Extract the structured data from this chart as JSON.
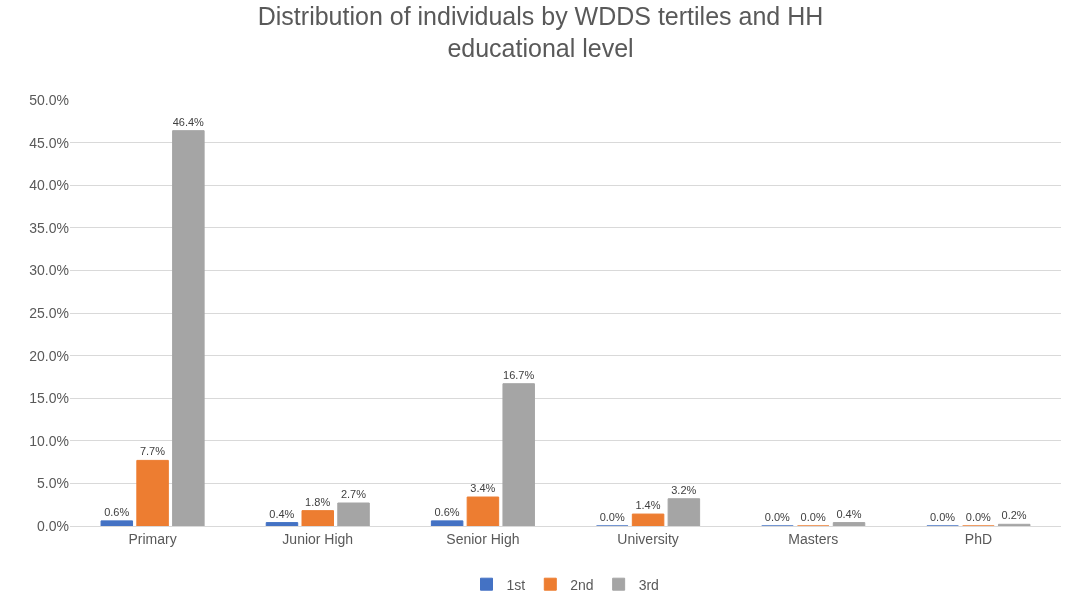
{
  "chart_data": {
    "type": "bar",
    "title": "Distribution of individuals by WDDS tertiles and HH educational level",
    "categories": [
      "Primary",
      "Junior High",
      "Senior High",
      "University",
      "Masters",
      "PhD"
    ],
    "series": [
      {
        "name": "1st",
        "color": "#4472c4",
        "values": [
          0.6,
          0.4,
          0.6,
          0.0,
          0.0,
          0.0
        ],
        "value_labels": [
          "0.6%",
          "0.4%",
          "0.6%",
          "0.0%",
          "0.0%",
          "0.0%"
        ]
      },
      {
        "name": "2nd",
        "color": "#ed7d31",
        "values": [
          7.7,
          1.8,
          3.4,
          1.4,
          0.0,
          0.0
        ],
        "value_labels": [
          "7.7%",
          "1.8%",
          "3.4%",
          "1.4%",
          "0.0%",
          "0.0%"
        ]
      },
      {
        "name": "3rd",
        "color": "#a5a5a5",
        "values": [
          46.4,
          2.7,
          16.7,
          3.2,
          0.4,
          0.2
        ],
        "value_labels": [
          "46.4%",
          "2.7%",
          "16.7%",
          "3.2%",
          "0.4%",
          "0.2%"
        ]
      }
    ],
    "ylim": [
      0,
      50
    ],
    "yticks": [
      {
        "value": 0,
        "label": "0.0%"
      },
      {
        "value": 5,
        "label": "5.0%"
      },
      {
        "value": 10,
        "label": "10.0%"
      },
      {
        "value": 15,
        "label": "15.0%"
      },
      {
        "value": 20,
        "label": "20.0%"
      },
      {
        "value": 25,
        "label": "25.0%"
      },
      {
        "value": 30,
        "label": "30.0%"
      },
      {
        "value": 35,
        "label": "35.0%"
      },
      {
        "value": 40,
        "label": "40.0%"
      },
      {
        "value": 45,
        "label": "45.0%"
      },
      {
        "value": 50,
        "label": "50.0%"
      }
    ],
    "grid": "y",
    "legend": "bottom"
  }
}
